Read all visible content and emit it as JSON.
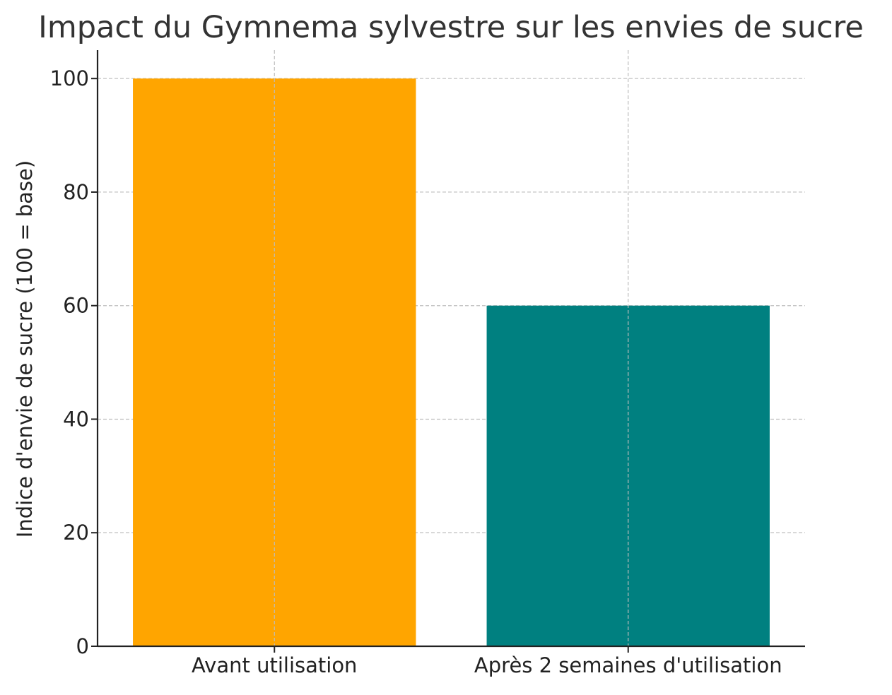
{
  "chart_data": {
    "type": "bar",
    "title": "Impact du Gymnema sylvestre sur les envies de sucre",
    "xlabel": "",
    "ylabel": "Indice d'envie de sucre (100 = base)",
    "categories": [
      "Avant utilisation",
      "Après 2 semaines d'utilisation"
    ],
    "values": [
      100,
      60
    ],
    "colors": [
      "#ffa500",
      "#008080"
    ],
    "ylim": [
      0,
      105
    ],
    "yticks": [
      0,
      20,
      40,
      60,
      80,
      100
    ],
    "grid": true,
    "grid_style": "dashed",
    "legend": "none"
  }
}
